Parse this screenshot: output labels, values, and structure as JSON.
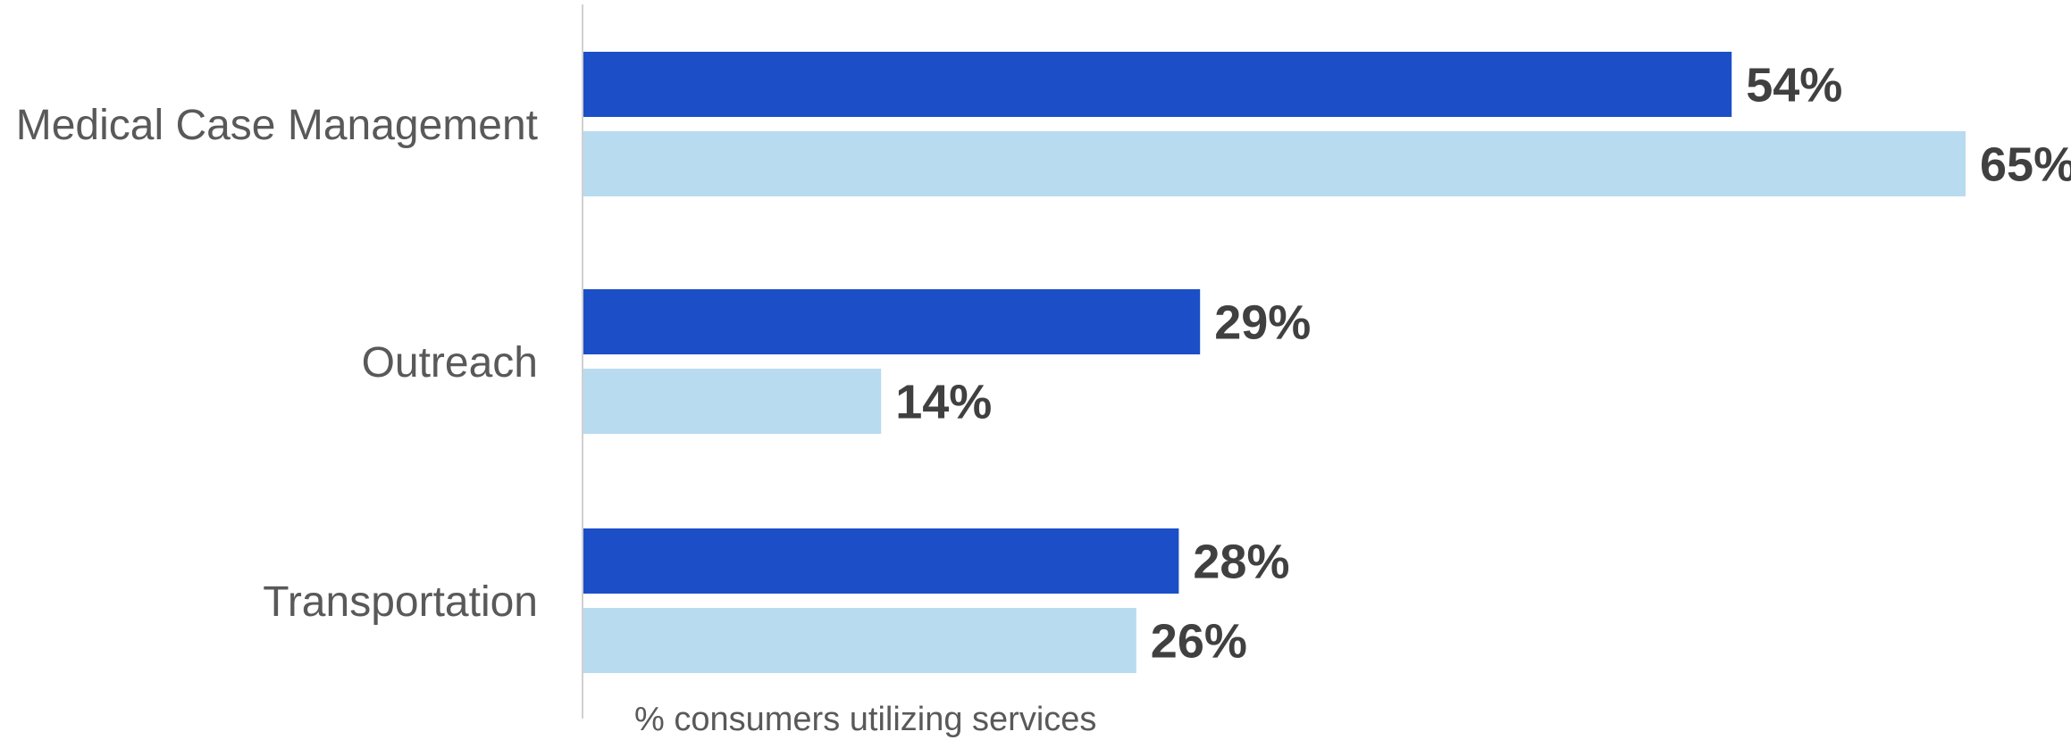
{
  "chart_data": {
    "type": "bar",
    "orientation": "horizontal",
    "categories": [
      "Medical Case Management",
      "Outreach",
      "Transportation"
    ],
    "series": [
      {
        "values": [
          54,
          29,
          28
        ],
        "color": "#1c4fc7"
      },
      {
        "values": [
          65,
          14,
          26
        ],
        "color": "#b8dbf0"
      }
    ],
    "value_labels": [
      [
        "54%",
        "29%",
        "28%"
      ],
      [
        "65%",
        "14%",
        "26%"
      ]
    ],
    "xlabel": "% consumers utilizing services",
    "xlim": [
      0,
      65
    ],
    "grid": false,
    "legend": "none"
  }
}
